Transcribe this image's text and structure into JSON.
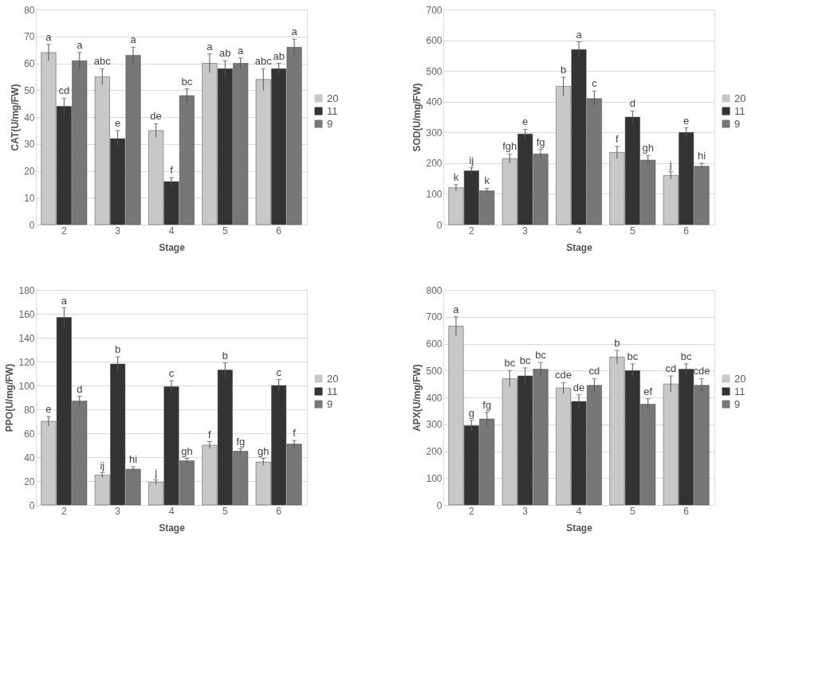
{
  "chart_data": [
    {
      "type": "bar",
      "xlabel": "Stage",
      "ylabel": "CAT(U/mg/FW)",
      "categories": [
        "2",
        "3",
        "4",
        "5",
        "6"
      ],
      "ylim": [
        0,
        80
      ],
      "yticks": [
        0,
        10,
        20,
        30,
        40,
        50,
        60,
        70,
        80
      ],
      "grid": "y",
      "legend": "right",
      "series": [
        {
          "name": "20",
          "color": "#c8c8c8",
          "values": [
            64,
            55,
            35,
            60,
            54
          ],
          "errors": [
            3,
            3,
            2.5,
            3.5,
            4
          ]
        },
        {
          "name": "11",
          "color": "#333333",
          "values": [
            44,
            32,
            16,
            58,
            58
          ],
          "errors": [
            3,
            3,
            1.5,
            3,
            2
          ]
        },
        {
          "name": "9",
          "color": "#777777",
          "values": [
            61,
            63,
            48,
            60,
            66
          ],
          "errors": [
            3,
            3,
            2.5,
            2,
            3
          ]
        }
      ],
      "annotations": [
        "a",
        "abc",
        "de",
        "a",
        "abc",
        "cd",
        "e",
        "f",
        "ab",
        "ab",
        "a",
        "a",
        "bc",
        "a",
        "a"
      ]
    },
    {
      "type": "bar",
      "xlabel": "Stage",
      "ylabel": "SOD(U/mg/FW)",
      "categories": [
        "2",
        "3",
        "4",
        "5",
        "6"
      ],
      "ylim": [
        0,
        700
      ],
      "yticks": [
        0,
        100,
        200,
        300,
        400,
        500,
        600,
        700
      ],
      "grid": "y",
      "legend": "right",
      "series": [
        {
          "name": "20",
          "color": "#c8c8c8",
          "values": [
            120,
            215,
            450,
            235,
            160
          ],
          "errors": [
            10,
            15,
            30,
            20,
            12
          ]
        },
        {
          "name": "11",
          "color": "#333333",
          "values": [
            175,
            295,
            570,
            350,
            300
          ],
          "errors": [
            10,
            15,
            25,
            20,
            15
          ]
        },
        {
          "name": "9",
          "color": "#777777",
          "values": [
            110,
            230,
            410,
            210,
            190
          ],
          "errors": [
            8,
            15,
            25,
            15,
            10
          ]
        }
      ],
      "annotations": [
        "k",
        "fgh",
        "b",
        "f",
        "j",
        "ij",
        "e",
        "a",
        "d",
        "e",
        "k",
        "fg",
        "c",
        "gh",
        "hi"
      ]
    },
    {
      "type": "bar",
      "xlabel": "Stage",
      "ylabel": "PPO(U/mg/FW)",
      "categories": [
        "2",
        "3",
        "4",
        "5",
        "6"
      ],
      "ylim": [
        0,
        180
      ],
      "yticks": [
        0,
        20,
        40,
        60,
        80,
        100,
        120,
        140,
        160,
        180
      ],
      "grid": "y",
      "legend": "right",
      "series": [
        {
          "name": "20",
          "color": "#c8c8c8",
          "values": [
            70,
            25,
            19,
            50,
            36
          ],
          "errors": [
            4,
            2,
            2,
            3,
            3
          ]
        },
        {
          "name": "11",
          "color": "#333333",
          "values": [
            157,
            118,
            99,
            113,
            100
          ],
          "errors": [
            8,
            6,
            5,
            6,
            5
          ]
        },
        {
          "name": "9",
          "color": "#777777",
          "values": [
            87,
            30,
            37,
            45,
            51
          ],
          "errors": [
            4,
            2,
            2,
            2,
            3
          ]
        }
      ],
      "annotations": [
        "e",
        "ij",
        "j",
        "f",
        "gh",
        "a",
        "b",
        "c",
        "b",
        "c",
        "d",
        "hi",
        "gh",
        "fg",
        "f"
      ]
    },
    {
      "type": "bar",
      "xlabel": "Stage",
      "ylabel": "APX(U/mg/FW)",
      "categories": [
        "2",
        "3",
        "4",
        "5",
        "6"
      ],
      "ylim": [
        0,
        800
      ],
      "yticks": [
        0,
        100,
        200,
        300,
        400,
        500,
        600,
        700,
        800
      ],
      "grid": "y",
      "legend": "right",
      "series": [
        {
          "name": "20",
          "color": "#c8c8c8",
          "values": [
            665,
            470,
            435,
            550,
            450
          ],
          "errors": [
            35,
            30,
            20,
            25,
            30
          ]
        },
        {
          "name": "11",
          "color": "#333333",
          "values": [
            295,
            480,
            385,
            500,
            505
          ],
          "errors": [
            20,
            30,
            25,
            25,
            20
          ]
        },
        {
          "name": "9",
          "color": "#777777",
          "values": [
            320,
            505,
            445,
            375,
            445
          ],
          "errors": [
            25,
            25,
            25,
            20,
            25
          ]
        }
      ],
      "annotations": [
        "a",
        "bc",
        "cde",
        "b",
        "cd",
        "g",
        "bc",
        "de",
        "bc",
        "bc",
        "fg",
        "bc",
        "cd",
        "ef",
        "cde"
      ]
    }
  ]
}
